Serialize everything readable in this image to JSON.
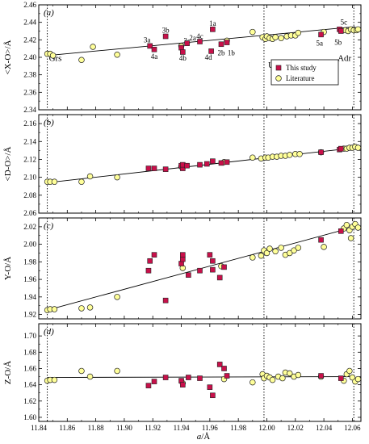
{
  "colors": {
    "this_study": "#c8104a",
    "literature": "#ffff99",
    "marker_edge": "#222222",
    "line": "#000000"
  },
  "xaxis": {
    "label_italic": "a",
    "label_rest": "/Å",
    "range": [
      11.84,
      12.066
    ],
    "ticks": [
      11.84,
      11.86,
      11.88,
      11.9,
      11.92,
      11.94,
      11.96,
      11.98,
      12.0,
      12.02,
      12.04,
      12.06
    ],
    "tick_labels": [
      "11.84",
      "11.86",
      "11.88",
      "11.90",
      "11.92",
      "11.94",
      "11.96",
      "11.98",
      "12.00",
      "12.02",
      "12.04",
      "12.06"
    ]
  },
  "vlines": [
    {
      "x": 11.846,
      "label": "Grs",
      "panel": 0,
      "label_y": 2.396,
      "anchor": "start",
      "dx": 2
    },
    {
      "x": 11.998,
      "label": "Uv",
      "panel": 0,
      "label_y": 2.388,
      "anchor": "start",
      "dx": 5
    },
    {
      "x": 12.061,
      "label": "Adr",
      "panel": 0,
      "label_y": 2.396,
      "anchor": "end",
      "dx": -3
    }
  ],
  "legend": {
    "this_study": "This study",
    "literature": "Literature"
  },
  "chart_data": [
    {
      "type": "scatter",
      "panel_tag": "(a)",
      "ylabel": "<X-O>/Å",
      "ylim": [
        2.34,
        2.46
      ],
      "yticks": [
        2.34,
        2.36,
        2.38,
        2.4,
        2.42,
        2.44,
        2.46
      ],
      "ytick_labels": [
        "2.34",
        "2.36",
        "2.38",
        "2.40",
        "2.42",
        "2.44",
        "2.46"
      ],
      "fit_line": {
        "x": [
          11.846,
          12.062
        ],
        "y": [
          2.402,
          2.435
        ]
      },
      "legend": true,
      "series": [
        {
          "name": "This study",
          "points": [
            {
              "x": 11.918,
              "y": 2.413,
              "label": "3a",
              "lx": 11.916,
              "ly": 2.42
            },
            {
              "x": 11.921,
              "y": 2.409,
              "label": "4a",
              "lx": 11.921,
              "ly": 2.401
            },
            {
              "x": 11.929,
              "y": 2.424,
              "label": "3b",
              "lx": 11.929,
              "ly": 2.431
            },
            {
              "x": 11.94,
              "y": 2.411,
              "label": "3c",
              "lx": 11.944,
              "ly": 2.419
            },
            {
              "x": 11.941,
              "y": 2.406,
              "label": "4b",
              "lx": 11.941,
              "ly": 2.399
            },
            {
              "x": 11.944,
              "y": 2.416,
              "label": "2a",
              "lx": 11.948,
              "ly": 2.422
            },
            {
              "x": 11.953,
              "y": 2.418,
              "label": "4c",
              "lx": 11.953,
              "ly": 2.424
            },
            {
              "x": 11.961,
              "y": 2.407,
              "label": "4d",
              "lx": 11.959,
              "ly": 2.4
            },
            {
              "x": 11.962,
              "y": 2.432,
              "label": "1a",
              "lx": 11.962,
              "ly": 2.439
            },
            {
              "x": 11.968,
              "y": 2.415,
              "label": "2b",
              "lx": 11.968,
              "ly": 2.405
            },
            {
              "x": 11.972,
              "y": 2.417,
              "label": "1b",
              "lx": 11.975,
              "ly": 2.405
            },
            {
              "x": 12.038,
              "y": 2.426,
              "label": "5a",
              "lx": 12.037,
              "ly": 2.416
            },
            {
              "x": 12.051,
              "y": 2.432,
              "label": "5c",
              "lx": 12.054,
              "ly": 2.44
            },
            {
              "x": 12.052,
              "y": 2.43,
              "label": "5b",
              "lx": 12.05,
              "ly": 2.417
            }
          ]
        },
        {
          "name": "Literature",
          "points": [
            {
              "x": 11.846,
              "y": 2.404
            },
            {
              "x": 11.848,
              "y": 2.404
            },
            {
              "x": 11.85,
              "y": 2.402
            },
            {
              "x": 11.87,
              "y": 2.397
            },
            {
              "x": 11.878,
              "y": 2.412
            },
            {
              "x": 11.895,
              "y": 2.403
            },
            {
              "x": 11.94,
              "y": 2.413
            },
            {
              "x": 11.972,
              "y": 2.419
            },
            {
              "x": 11.99,
              "y": 2.429
            },
            {
              "x": 11.997,
              "y": 2.423
            },
            {
              "x": 11.999,
              "y": 2.421
            },
            {
              "x": 12.0,
              "y": 2.424
            },
            {
              "x": 12.002,
              "y": 2.422
            },
            {
              "x": 12.004,
              "y": 2.421
            },
            {
              "x": 12.006,
              "y": 2.423
            },
            {
              "x": 12.01,
              "y": 2.422
            },
            {
              "x": 12.014,
              "y": 2.424
            },
            {
              "x": 12.017,
              "y": 2.425
            },
            {
              "x": 12.02,
              "y": 2.425
            },
            {
              "x": 12.022,
              "y": 2.428
            },
            {
              "x": 12.04,
              "y": 2.429
            },
            {
              "x": 12.055,
              "y": 2.431
            },
            {
              "x": 12.057,
              "y": 2.43
            },
            {
              "x": 12.059,
              "y": 2.432
            },
            {
              "x": 12.061,
              "y": 2.431
            },
            {
              "x": 12.063,
              "y": 2.431
            },
            {
              "x": 12.064,
              "y": 2.432
            }
          ]
        }
      ]
    },
    {
      "type": "scatter",
      "panel_tag": "(b)",
      "ylabel": "<D-O>/Å",
      "ylim": [
        2.06,
        2.17
      ],
      "yticks": [
        2.06,
        2.08,
        2.1,
        2.12,
        2.14,
        2.16
      ],
      "ytick_labels": [
        "2.06",
        "2.08",
        "2.10",
        "2.12",
        "2.14",
        "2.16"
      ],
      "fit_line": {
        "x": [
          11.846,
          12.062
        ],
        "y": [
          2.094,
          2.133
        ]
      },
      "legend": false,
      "series": [
        {
          "name": "This study",
          "points": [
            {
              "x": 11.917,
              "y": 2.11
            },
            {
              "x": 11.921,
              "y": 2.11
            },
            {
              "x": 11.929,
              "y": 2.109
            },
            {
              "x": 11.94,
              "y": 2.113
            },
            {
              "x": 11.941,
              "y": 2.11
            },
            {
              "x": 11.941,
              "y": 2.114
            },
            {
              "x": 11.944,
              "y": 2.113
            },
            {
              "x": 11.953,
              "y": 2.114
            },
            {
              "x": 11.958,
              "y": 2.115
            },
            {
              "x": 11.962,
              "y": 2.118
            },
            {
              "x": 11.968,
              "y": 2.116
            },
            {
              "x": 11.972,
              "y": 2.117
            },
            {
              "x": 12.038,
              "y": 2.128
            },
            {
              "x": 12.051,
              "y": 2.131
            },
            {
              "x": 12.052,
              "y": 2.132
            }
          ]
        },
        {
          "name": "Literature",
          "points": [
            {
              "x": 11.846,
              "y": 2.095
            },
            {
              "x": 11.848,
              "y": 2.095
            },
            {
              "x": 11.851,
              "y": 2.095
            },
            {
              "x": 11.87,
              "y": 2.095
            },
            {
              "x": 11.876,
              "y": 2.101
            },
            {
              "x": 11.895,
              "y": 2.1
            },
            {
              "x": 11.94,
              "y": 2.112
            },
            {
              "x": 11.97,
              "y": 2.117
            },
            {
              "x": 11.99,
              "y": 2.122
            },
            {
              "x": 11.996,
              "y": 2.121
            },
            {
              "x": 11.999,
              "y": 2.122
            },
            {
              "x": 12.001,
              "y": 2.122
            },
            {
              "x": 12.004,
              "y": 2.123
            },
            {
              "x": 12.007,
              "y": 2.123
            },
            {
              "x": 12.01,
              "y": 2.124
            },
            {
              "x": 12.013,
              "y": 2.124
            },
            {
              "x": 12.016,
              "y": 2.125
            },
            {
              "x": 12.02,
              "y": 2.126
            },
            {
              "x": 12.023,
              "y": 2.126
            },
            {
              "x": 12.038,
              "y": 2.128
            },
            {
              "x": 12.054,
              "y": 2.132
            },
            {
              "x": 12.056,
              "y": 2.132
            },
            {
              "x": 12.058,
              "y": 2.133
            },
            {
              "x": 12.06,
              "y": 2.133
            },
            {
              "x": 12.062,
              "y": 2.134
            },
            {
              "x": 12.064,
              "y": 2.133
            }
          ]
        }
      ]
    },
    {
      "type": "scatter",
      "panel_tag": "(c)",
      "ylabel": "Y-O/Å",
      "ylim": [
        1.915,
        2.03
      ],
      "yticks": [
        1.92,
        1.94,
        1.96,
        1.98,
        2.0,
        2.02
      ],
      "ytick_labels": [
        "1.92",
        "1.94",
        "1.96",
        "1.98",
        "2.00",
        "2.02"
      ],
      "fit_line": {
        "x": [
          11.846,
          12.062
        ],
        "y": [
          1.925,
          2.02
        ]
      },
      "legend": false,
      "series": [
        {
          "name": "This study",
          "points": [
            {
              "x": 11.917,
              "y": 1.97
            },
            {
              "x": 11.918,
              "y": 1.981
            },
            {
              "x": 11.921,
              "y": 1.988
            },
            {
              "x": 11.929,
              "y": 1.936
            },
            {
              "x": 11.94,
              "y": 1.978
            },
            {
              "x": 11.941,
              "y": 1.983
            },
            {
              "x": 11.941,
              "y": 1.988
            },
            {
              "x": 11.945,
              "y": 1.965
            },
            {
              "x": 11.953,
              "y": 1.97
            },
            {
              "x": 11.96,
              "y": 1.988
            },
            {
              "x": 11.962,
              "y": 1.981
            },
            {
              "x": 11.962,
              "y": 1.971
            },
            {
              "x": 11.967,
              "y": 1.962
            },
            {
              "x": 11.97,
              "y": 1.974
            },
            {
              "x": 12.038,
              "y": 2.005
            },
            {
              "x": 12.052,
              "y": 2.015
            }
          ]
        },
        {
          "name": "Literature",
          "points": [
            {
              "x": 11.846,
              "y": 1.925
            },
            {
              "x": 11.848,
              "y": 1.926
            },
            {
              "x": 11.851,
              "y": 1.926
            },
            {
              "x": 11.87,
              "y": 1.927
            },
            {
              "x": 11.876,
              "y": 1.928
            },
            {
              "x": 11.895,
              "y": 1.94
            },
            {
              "x": 11.941,
              "y": 1.973
            },
            {
              "x": 11.968,
              "y": 1.975
            },
            {
              "x": 11.99,
              "y": 1.985
            },
            {
              "x": 11.996,
              "y": 1.987
            },
            {
              "x": 11.998,
              "y": 1.993
            },
            {
              "x": 12.0,
              "y": 1.99
            },
            {
              "x": 12.002,
              "y": 1.995
            },
            {
              "x": 12.006,
              "y": 1.992
            },
            {
              "x": 12.01,
              "y": 1.996
            },
            {
              "x": 12.013,
              "y": 1.988
            },
            {
              "x": 12.016,
              "y": 1.99
            },
            {
              "x": 12.019,
              "y": 1.993
            },
            {
              "x": 12.022,
              "y": 1.996
            },
            {
              "x": 12.04,
              "y": 1.997
            },
            {
              "x": 12.054,
              "y": 2.018
            },
            {
              "x": 12.056,
              "y": 2.022
            },
            {
              "x": 12.058,
              "y": 2.016
            },
            {
              "x": 12.059,
              "y": 2.007
            },
            {
              "x": 12.06,
              "y": 2.02
            },
            {
              "x": 12.062,
              "y": 2.023
            },
            {
              "x": 12.064,
              "y": 2.019
            }
          ]
        }
      ]
    },
    {
      "type": "scatter",
      "panel_tag": "(d)",
      "ylabel": "Z-O/Å",
      "ylim": [
        1.595,
        1.715
      ],
      "yticks": [
        1.6,
        1.62,
        1.64,
        1.66,
        1.68,
        1.7
      ],
      "ytick_labels": [
        "1.60",
        "1.62",
        "1.64",
        "1.66",
        "1.68",
        "1.70"
      ],
      "fit_line": {
        "x": [
          11.846,
          12.062
        ],
        "y": [
          1.649,
          1.65
        ]
      },
      "legend": false,
      "series": [
        {
          "name": "This study",
          "points": [
            {
              "x": 11.917,
              "y": 1.639
            },
            {
              "x": 11.921,
              "y": 1.644
            },
            {
              "x": 11.929,
              "y": 1.649
            },
            {
              "x": 11.94,
              "y": 1.645
            },
            {
              "x": 11.941,
              "y": 1.64
            },
            {
              "x": 11.945,
              "y": 1.649
            },
            {
              "x": 11.953,
              "y": 1.648
            },
            {
              "x": 11.96,
              "y": 1.637
            },
            {
              "x": 11.962,
              "y": 1.627
            },
            {
              "x": 11.967,
              "y": 1.665
            },
            {
              "x": 11.97,
              "y": 1.66
            },
            {
              "x": 11.972,
              "y": 1.651
            },
            {
              "x": 12.038,
              "y": 1.651
            },
            {
              "x": 12.052,
              "y": 1.648
            }
          ]
        },
        {
          "name": "Literature",
          "points": [
            {
              "x": 11.846,
              "y": 1.645
            },
            {
              "x": 11.848,
              "y": 1.646
            },
            {
              "x": 11.851,
              "y": 1.646
            },
            {
              "x": 11.87,
              "y": 1.657
            },
            {
              "x": 11.876,
              "y": 1.65
            },
            {
              "x": 11.895,
              "y": 1.657
            },
            {
              "x": 11.941,
              "y": 1.642
            },
            {
              "x": 11.97,
              "y": 1.647
            },
            {
              "x": 11.99,
              "y": 1.643
            },
            {
              "x": 11.997,
              "y": 1.653
            },
            {
              "x": 11.998,
              "y": 1.648
            },
            {
              "x": 12.0,
              "y": 1.651
            },
            {
              "x": 12.002,
              "y": 1.649
            },
            {
              "x": 12.004,
              "y": 1.646
            },
            {
              "x": 12.008,
              "y": 1.65
            },
            {
              "x": 12.011,
              "y": 1.648
            },
            {
              "x": 12.013,
              "y": 1.655
            },
            {
              "x": 12.016,
              "y": 1.654
            },
            {
              "x": 12.019,
              "y": 1.65
            },
            {
              "x": 12.022,
              "y": 1.652
            },
            {
              "x": 12.038,
              "y": 1.65
            },
            {
              "x": 12.054,
              "y": 1.645
            },
            {
              "x": 12.056,
              "y": 1.653
            },
            {
              "x": 12.058,
              "y": 1.657
            },
            {
              "x": 12.06,
              "y": 1.649
            },
            {
              "x": 12.062,
              "y": 1.644
            },
            {
              "x": 12.064,
              "y": 1.647
            }
          ]
        }
      ]
    }
  ]
}
